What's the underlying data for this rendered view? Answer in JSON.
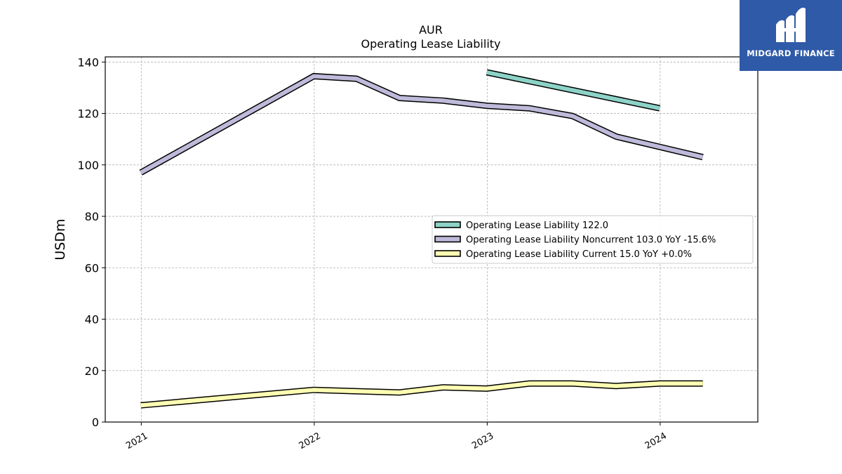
{
  "chart_data": {
    "type": "line",
    "title": "AUR",
    "subtitle": "Operating Lease Liability",
    "ylabel": "USDm",
    "xlabel": "",
    "ylim": [
      0,
      142
    ],
    "yticks": [
      0,
      20,
      40,
      60,
      80,
      100,
      120,
      140
    ],
    "xlim": [
      "2020-10-17",
      "2024-07-25"
    ],
    "xticks": [
      {
        "date": "2021-01-01",
        "label": "2021"
      },
      {
        "date": "2022-01-01",
        "label": "2022"
      },
      {
        "date": "2023-01-01",
        "label": "2023"
      },
      {
        "date": "2024-01-01",
        "label": "2024"
      }
    ],
    "grid": true,
    "legend_position": "center-right",
    "series": [
      {
        "name": "Operating Lease Liability  122.0",
        "color": "#8dd3c7",
        "points": [
          [
            "2022-12-31",
            136.0
          ],
          [
            "2023-12-31",
            122.0
          ]
        ]
      },
      {
        "name": "Operating Lease Liability Noncurrent  103.0 YoY -15.6%",
        "color": "#bebada",
        "points": [
          [
            "2020-12-31",
            97.0
          ],
          [
            "2021-12-31",
            134.5
          ],
          [
            "2022-03-31",
            133.5
          ],
          [
            "2022-06-30",
            126.0
          ],
          [
            "2022-09-30",
            125.0
          ],
          [
            "2022-12-31",
            123.0
          ],
          [
            "2023-03-31",
            122.0
          ],
          [
            "2023-06-30",
            119.0
          ],
          [
            "2023-09-30",
            111.0
          ],
          [
            "2023-12-31",
            107.0
          ],
          [
            "2024-03-31",
            103.0
          ]
        ]
      },
      {
        "name": "Operating Lease Liability Current  15.0 YoY +0.0%",
        "color": "#ffffb3",
        "points": [
          [
            "2020-12-31",
            6.5
          ],
          [
            "2021-12-31",
            12.5
          ],
          [
            "2022-03-31",
            12.0
          ],
          [
            "2022-06-30",
            11.5
          ],
          [
            "2022-09-30",
            13.5
          ],
          [
            "2022-12-31",
            13.0
          ],
          [
            "2023-03-31",
            15.0
          ],
          [
            "2023-06-30",
            15.0
          ],
          [
            "2023-09-30",
            14.0
          ],
          [
            "2023-12-31",
            15.0
          ],
          [
            "2024-03-31",
            15.0
          ]
        ]
      }
    ]
  },
  "logo": {
    "text": "MIDGARD FINANCE",
    "background": "#2f5aa8"
  }
}
